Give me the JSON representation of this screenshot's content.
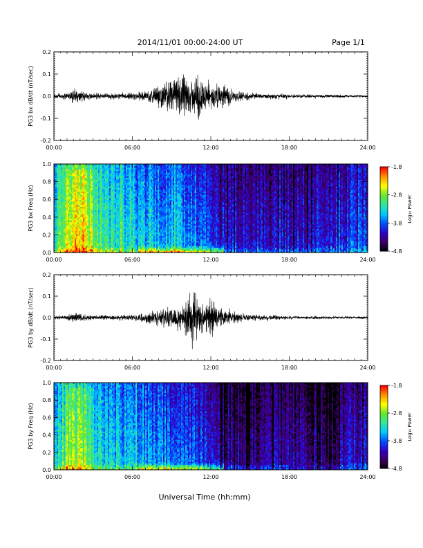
{
  "header": {
    "date_range": "2014/11/01  00:00-24:00 UT",
    "page": "Page 1/1"
  },
  "footer": {
    "xlabel": "Universal Time (hh:mm)"
  },
  "colorbar": {
    "label": "Log₁₀ Power",
    "ticks": [
      -1.8,
      -2.8,
      -3.8,
      -4.8
    ],
    "tick_labels": [
      "-1.8",
      "-2.8",
      "-3.8",
      "-4.8"
    ],
    "range": [
      -4.8,
      -1.8
    ],
    "colormap": [
      "#000000",
      "#3c0064",
      "#3200c8",
      "#0050ff",
      "#00c8ff",
      "#32e6a0",
      "#64e632",
      "#ffff00",
      "#ff9600",
      "#ff0000"
    ]
  },
  "chart_data": [
    {
      "type": "line",
      "id": "bx-timeseries",
      "ylabel": "PG3 bx dB/dt (nT/sec)",
      "xlim": [
        0,
        24
      ],
      "ylim": [
        -0.2,
        0.2
      ],
      "x_ticks": [
        "00:00",
        "06:00",
        "12:00",
        "18:00",
        "24:00"
      ],
      "y_ticks": [
        "0.2",
        "0.1",
        "0.0",
        "-0.1",
        "-0.2"
      ],
      "y_tick_values": [
        0.2,
        0.1,
        0.0,
        -0.1,
        -0.2
      ],
      "envelope": {
        "hours": [
          0,
          1,
          1.5,
          2,
          3,
          4,
          5,
          6,
          7,
          8,
          9,
          10,
          10.5,
          11,
          11.5,
          12,
          13,
          14,
          15,
          16,
          17,
          18,
          19,
          20,
          21,
          22,
          23,
          24
        ],
        "amplitude": [
          0.015,
          0.02,
          0.045,
          0.03,
          0.018,
          0.018,
          0.018,
          0.02,
          0.03,
          0.06,
          0.1,
          0.12,
          0.09,
          0.15,
          0.1,
          0.08,
          0.07,
          0.03,
          0.02,
          0.015,
          0.015,
          0.012,
          0.012,
          0.01,
          0.01,
          0.008,
          0.008,
          0.008
        ]
      }
    },
    {
      "type": "heatmap",
      "id": "bx-spectrogram",
      "ylabel": "PG3 bx Freq (Hz)",
      "xlim": [
        0,
        24
      ],
      "ylim": [
        0.0,
        1.0
      ],
      "x_ticks": [
        "00:00",
        "06:00",
        "12:00",
        "18:00",
        "24:00"
      ],
      "y_ticks": [
        "1.0",
        "0.8",
        "0.6",
        "0.4",
        "0.2",
        "0.0"
      ],
      "y_tick_values": [
        1.0,
        0.8,
        0.6,
        0.4,
        0.2,
        0.0
      ],
      "value_range": [
        -4.8,
        -1.8
      ],
      "base_power_by_hour": {
        "hours": [
          0,
          1,
          2,
          3,
          4,
          5,
          6,
          7,
          8,
          9,
          10,
          11,
          12,
          13,
          14,
          15,
          16,
          17,
          18,
          19,
          20,
          21,
          22,
          23,
          24
        ],
        "power": [
          -3.4,
          -2.8,
          -2.6,
          -3.0,
          -3.3,
          -3.4,
          -3.5,
          -3.6,
          -3.6,
          -3.6,
          -3.7,
          -3.8,
          -3.9,
          -4.1,
          -4.2,
          -4.2,
          -4.2,
          -4.1,
          -4.1,
          -4.2,
          -4.1,
          -4.2,
          -4.0,
          -3.9,
          -3.9
        ]
      }
    },
    {
      "type": "line",
      "id": "by-timeseries",
      "ylabel": "PG3 by dB/dt (nT/sec)",
      "xlim": [
        0,
        24
      ],
      "ylim": [
        -0.2,
        0.2
      ],
      "x_ticks": [
        "00:00",
        "06:00",
        "12:00",
        "18:00",
        "24:00"
      ],
      "y_ticks": [
        "0.2",
        "0.1",
        "0.0",
        "-0.1",
        "-0.2"
      ],
      "y_tick_values": [
        0.2,
        0.1,
        0.0,
        -0.1,
        -0.2
      ],
      "envelope": {
        "hours": [
          0,
          1,
          1.5,
          2,
          3,
          4,
          5,
          6,
          7,
          8,
          9,
          10,
          10.5,
          11,
          11.5,
          12,
          12.5,
          13,
          14,
          15,
          16,
          17,
          18,
          19,
          20,
          21,
          22,
          23,
          24
        ],
        "amplitude": [
          0.01,
          0.015,
          0.035,
          0.025,
          0.015,
          0.015,
          0.015,
          0.018,
          0.03,
          0.05,
          0.07,
          0.08,
          0.18,
          0.1,
          0.08,
          0.13,
          0.07,
          0.05,
          0.03,
          0.02,
          0.015,
          0.012,
          0.01,
          0.01,
          0.01,
          0.008,
          0.008,
          0.008,
          0.008
        ]
      }
    },
    {
      "type": "heatmap",
      "id": "by-spectrogram",
      "ylabel": "PG3 by Freq (Hz)",
      "xlim": [
        0,
        24
      ],
      "ylim": [
        0.0,
        1.0
      ],
      "x_ticks": [
        "00:00",
        "06:00",
        "12:00",
        "18:00",
        "24:00"
      ],
      "y_ticks": [
        "1.0",
        "0.8",
        "0.6",
        "0.4",
        "0.2",
        "0.0"
      ],
      "y_tick_values": [
        1.0,
        0.8,
        0.6,
        0.4,
        0.2,
        0.0
      ],
      "value_range": [
        -4.8,
        -1.8
      ],
      "base_power_by_hour": {
        "hours": [
          0,
          1,
          2,
          3,
          4,
          5,
          6,
          7,
          8,
          9,
          10,
          11,
          12,
          13,
          14,
          15,
          16,
          17,
          18,
          19,
          20,
          21,
          22,
          23,
          24
        ],
        "power": [
          -3.5,
          -3.1,
          -3.0,
          -3.3,
          -3.5,
          -3.6,
          -3.6,
          -3.7,
          -3.8,
          -3.8,
          -3.9,
          -4.0,
          -4.1,
          -4.3,
          -4.4,
          -4.5,
          -4.4,
          -4.3,
          -4.4,
          -4.5,
          -4.5,
          -4.5,
          -4.4,
          -4.2,
          -4.1
        ]
      }
    }
  ]
}
